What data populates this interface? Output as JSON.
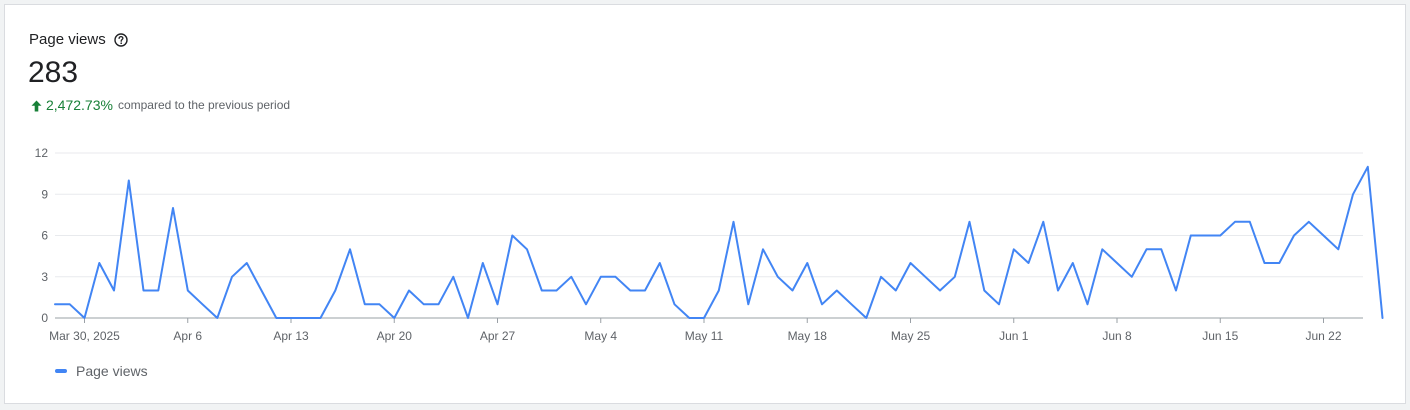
{
  "card": {
    "title": "Page views",
    "total": "283",
    "delta": "2,472.73%",
    "delta_text": "compared to the previous period"
  },
  "colors": {
    "line": "#4285f4",
    "positive": "#188038",
    "grid": "#e8eaed"
  },
  "icons": {
    "help": "help-circle-icon",
    "trend": "arrow-up-icon"
  },
  "chart_data": {
    "type": "line",
    "title": "",
    "xlabel": "",
    "ylabel": "",
    "ylim": [
      0,
      12
    ],
    "yticks": [
      0,
      3,
      6,
      9,
      12
    ],
    "grid": true,
    "legend_position": "bottom-left",
    "x_start": "2025-03-28",
    "x_end": "2025-06-24",
    "xticks": [
      {
        "date": "2025-03-30",
        "label": "Mar 30, 2025"
      },
      {
        "date": "2025-04-06",
        "label": "Apr 6"
      },
      {
        "date": "2025-04-13",
        "label": "Apr 13"
      },
      {
        "date": "2025-04-20",
        "label": "Apr 20"
      },
      {
        "date": "2025-04-27",
        "label": "Apr 27"
      },
      {
        "date": "2025-05-04",
        "label": "May 4"
      },
      {
        "date": "2025-05-11",
        "label": "May 11"
      },
      {
        "date": "2025-05-18",
        "label": "May 18"
      },
      {
        "date": "2025-05-25",
        "label": "May 25"
      },
      {
        "date": "2025-06-01",
        "label": "Jun 1"
      },
      {
        "date": "2025-06-08",
        "label": "Jun 8"
      },
      {
        "date": "2025-06-15",
        "label": "Jun 15"
      },
      {
        "date": "2025-06-22",
        "label": "Jun 22"
      }
    ],
    "series": [
      {
        "name": "Page views",
        "values": [
          1,
          1,
          0,
          4,
          2,
          10,
          2,
          2,
          8,
          2,
          1,
          0,
          3,
          4,
          2,
          0,
          0,
          0,
          0,
          2,
          5,
          1,
          1,
          0,
          2,
          1,
          1,
          3,
          0,
          4,
          1,
          6,
          5,
          2,
          2,
          3,
          1,
          3,
          3,
          2,
          2,
          4,
          1,
          0,
          0,
          2,
          7,
          1,
          5,
          3,
          2,
          4,
          1,
          2,
          1,
          0,
          3,
          2,
          4,
          3,
          2,
          3,
          7,
          2,
          1,
          5,
          4,
          7,
          2,
          4,
          1,
          5,
          4,
          3,
          5,
          5,
          2,
          6,
          6,
          6,
          7,
          7,
          4,
          4,
          6,
          7,
          6,
          5,
          9,
          11,
          0
        ]
      }
    ]
  }
}
